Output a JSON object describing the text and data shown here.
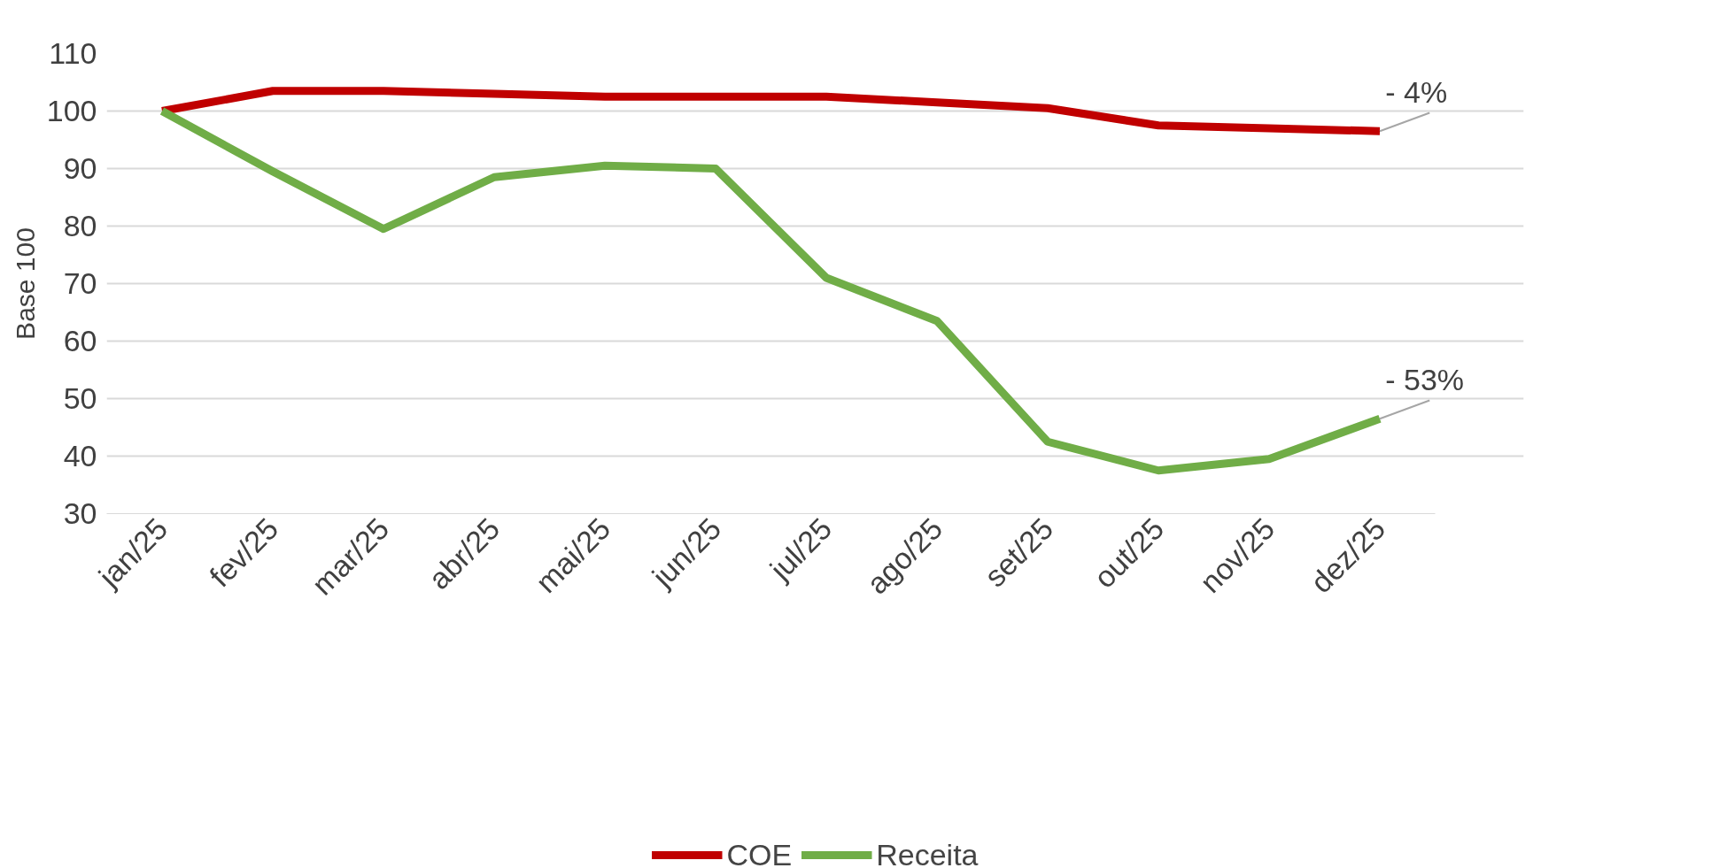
{
  "chart_data": {
    "type": "line",
    "ylabel": "Base 100",
    "categories": [
      "jan/25",
      "fev/25",
      "mar/25",
      "abr/25",
      "mai/25",
      "jun/25",
      "jul/25",
      "ago/25",
      "set/25",
      "out/25",
      "nov/25",
      "dez/25"
    ],
    "series": [
      {
        "name": "COE",
        "color": "#c00000",
        "values": [
          100,
          103.5,
          103.5,
          103,
          102.5,
          102.5,
          102.5,
          101.5,
          100.5,
          97.5,
          97,
          96.5
        ]
      },
      {
        "name": "Receita",
        "color": "#70ad47",
        "values": [
          100,
          89.5,
          79.5,
          88.5,
          90.5,
          90,
          71,
          63.5,
          42.5,
          37.5,
          39.5,
          46.5
        ]
      }
    ],
    "ylim": [
      30,
      110
    ],
    "yticks": [
      30,
      40,
      50,
      60,
      70,
      80,
      90,
      100,
      110
    ],
    "grid": "y",
    "legend": "bottom",
    "marker": "none",
    "line_style": "solid",
    "annotations": [
      {
        "text": "- 4%",
        "x": "dez/25",
        "y": 96.5
      },
      {
        "text": "- 53%",
        "x": "dez/25",
        "y": 46.5
      }
    ]
  }
}
